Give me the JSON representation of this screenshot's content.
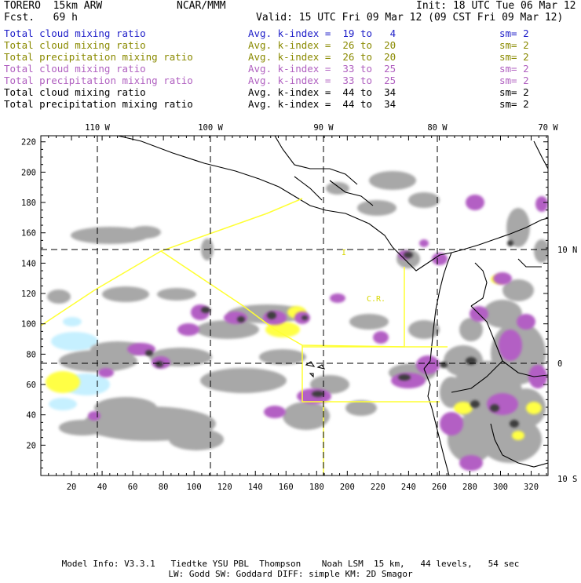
{
  "header": {
    "model": "TORERO  15km ARW",
    "org": "NCAR/MMM",
    "init": "Init: 18 UTC Tue 06 Mar 12",
    "fcst": "Fcst.   69 h",
    "valid": "Valid: 15 UTC Fri 09 Mar 12 (09 CST Fri 09 Mar 12)"
  },
  "legend": [
    {
      "field": "Total cloud mixing ratio",
      "kindex": "Avg. k-index =  19 to   4",
      "sm": "sm= 2",
      "color": "#1d1dc8"
    },
    {
      "field": "Total cloud mixing ratio",
      "kindex": "Avg. k-index =  26 to  20",
      "sm": "sm= 2",
      "color": "#8a8a00"
    },
    {
      "field": "Total precipitation mixing ratio",
      "kindex": "Avg. k-index =  26 to  20",
      "sm": "sm= 2",
      "color": "#8a8a00"
    },
    {
      "field": "Total cloud mixing ratio",
      "kindex": "Avg. k-index =  33 to  25",
      "sm": "sm= 2",
      "color": "#b060c0"
    },
    {
      "field": "Total precipitation mixing ratio",
      "kindex": "Avg. k-index =  33 to  25",
      "sm": "sm= 2",
      "color": "#b060c0"
    },
    {
      "field": "Total cloud mixing ratio",
      "kindex": "Avg. k-index =  44 to  34",
      "sm": "sm= 2",
      "color": "#000000"
    },
    {
      "field": "Total precipitation mixing ratio",
      "kindex": "Avg. k-index =  44 to  34",
      "sm": "sm= 2",
      "color": "#000000"
    }
  ],
  "map": {
    "top_lon_labels": [
      "110 W",
      "100 W",
      "90 W",
      "80 W",
      "70 W"
    ],
    "right_lat_labels": [
      "10 N",
      "0",
      "10 S"
    ],
    "left_y_ticks": [
      "220",
      "200",
      "180",
      "160",
      "140",
      "120",
      "100",
      "80",
      "60",
      "40",
      "20"
    ],
    "bottom_x_ticks": [
      "20",
      "40",
      "60",
      "80",
      "100",
      "120",
      "140",
      "160",
      "180",
      "200",
      "220",
      "240",
      "260",
      "280",
      "300",
      "320"
    ],
    "region_labels": [
      "C.R."
    ],
    "colors": {
      "grey": "#a8a8a8",
      "dark": "#3c3c3c",
      "purple": "#b35fc4",
      "yellow": "#ffff44",
      "cyan": "#c6f0ff",
      "border": "#ffff33",
      "coast": "#000000"
    }
  },
  "footer": {
    "line1": "Model Info: V3.3.1   Tiedtke YSU PBL  Thompson    Noah LSM  15 km,   44 levels,   54 sec",
    "line2": "LW: Godd SW: Goddard DIFF: simple KM: 2D Smagor"
  }
}
